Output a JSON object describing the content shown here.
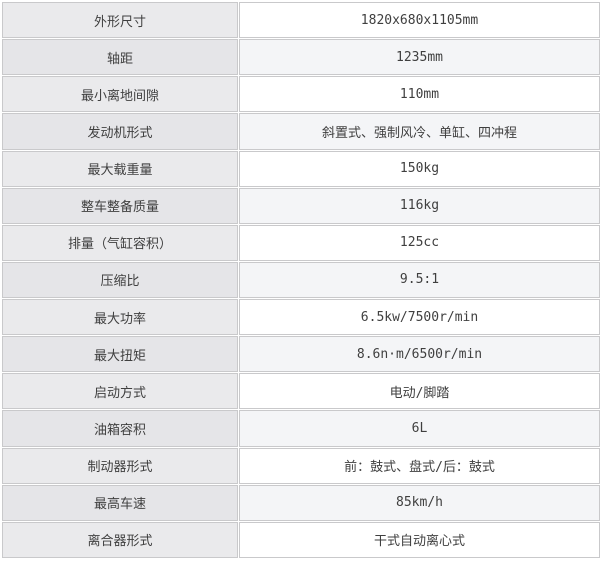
{
  "spec_table": {
    "rows": [
      {
        "label": "外形尺寸",
        "value": "1820x680x1105mm"
      },
      {
        "label": "轴距",
        "value": "1235mm"
      },
      {
        "label": "最小离地间隙",
        "value": "110mm"
      },
      {
        "label": "发动机形式",
        "value": "斜置式、强制风冷、单缸、四冲程"
      },
      {
        "label": "最大载重量",
        "value": "150kg"
      },
      {
        "label": "整车整备质量",
        "value": "116kg"
      },
      {
        "label": "排量（气缸容积）",
        "value": "125cc"
      },
      {
        "label": "压缩比",
        "value": "9.5:1"
      },
      {
        "label": "最大功率",
        "value": "6.5kw/7500r/min"
      },
      {
        "label": "最大扭矩",
        "value": "8.6n·m/6500r/min"
      },
      {
        "label": "启动方式",
        "value": "电动/脚踏"
      },
      {
        "label": "油箱容积",
        "value": "6L"
      },
      {
        "label": "制动器形式",
        "value": "前：鼓式、盘式/后：鼓式"
      },
      {
        "label": "最高车速",
        "value": "85km/h"
      },
      {
        "label": "离合器形式",
        "value": "干式自动离心式"
      }
    ],
    "colors": {
      "border": "#c9c9cb",
      "text": "#3f3f3f",
      "label_bg_odd": "#eaeaec",
      "label_bg_even": "#e5e5e8",
      "value_bg_odd": "#ffffff",
      "value_bg_even": "#f4f5f7"
    }
  }
}
